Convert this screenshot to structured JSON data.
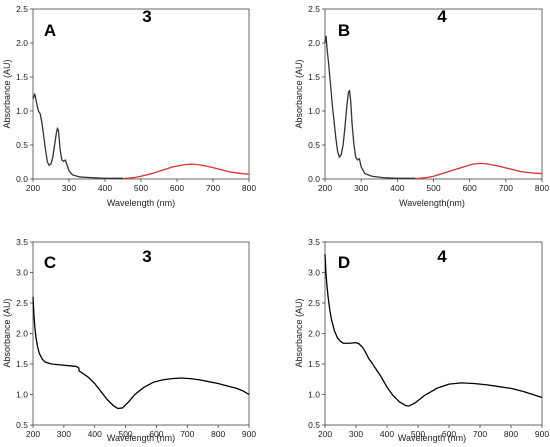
{
  "chart_data": [
    {
      "type": "line",
      "panel_label": "A",
      "compound_label": "3",
      "xlabel": "Wavelength (nm)",
      "ylabel": "Absorbance (AU)",
      "xlim": [
        200,
        800
      ],
      "ylim": [
        0,
        2.5
      ],
      "xticks": [
        200,
        300,
        400,
        500,
        600,
        700,
        800
      ],
      "yticks": [
        0.0,
        0.5,
        1.0,
        1.5,
        2.0,
        2.5
      ],
      "tick_labels_x": [
        "200",
        "300",
        "400",
        "500",
        "600",
        "700",
        "800"
      ],
      "tick_labels_y": [
        "0.0",
        "0.5",
        "1.0",
        "1.5",
        "2.0",
        "2.5"
      ],
      "series": [
        {
          "color": "#333333",
          "points": [
            [
              200,
              1.18
            ],
            [
              205,
              1.25
            ],
            [
              210,
              1.12
            ],
            [
              215,
              1.0
            ],
            [
              220,
              0.96
            ],
            [
              225,
              0.82
            ],
            [
              230,
              0.62
            ],
            [
              235,
              0.42
            ],
            [
              240,
              0.25
            ],
            [
              245,
              0.2
            ],
            [
              250,
              0.22
            ],
            [
              255,
              0.32
            ],
            [
              260,
              0.5
            ],
            [
              265,
              0.68
            ],
            [
              268,
              0.75
            ],
            [
              271,
              0.7
            ],
            [
              275,
              0.45
            ],
            [
              280,
              0.28
            ],
            [
              285,
              0.26
            ],
            [
              290,
              0.28
            ],
            [
              295,
              0.2
            ],
            [
              300,
              0.12
            ],
            [
              310,
              0.06
            ],
            [
              330,
              0.03
            ],
            [
              360,
              0.02
            ],
            [
              400,
              0.01
            ],
            [
              450,
              0.01
            ]
          ]
        },
        {
          "color": "#e03030",
          "points": [
            [
              450,
              0.005
            ],
            [
              480,
              0.02
            ],
            [
              500,
              0.04
            ],
            [
              530,
              0.08
            ],
            [
              560,
              0.13
            ],
            [
              590,
              0.18
            ],
            [
              620,
              0.21
            ],
            [
              640,
              0.22
            ],
            [
              660,
              0.21
            ],
            [
              690,
              0.18
            ],
            [
              720,
              0.14
            ],
            [
              750,
              0.1
            ],
            [
              780,
              0.08
            ],
            [
              800,
              0.07
            ]
          ]
        }
      ]
    },
    {
      "type": "line",
      "panel_label": "B",
      "compound_label": "4",
      "xlabel": "Wavelength(nm)",
      "ylabel": "Absorbance (AU)",
      "xlim": [
        200,
        800
      ],
      "ylim": [
        0,
        2.5
      ],
      "xticks": [
        200,
        300,
        400,
        500,
        600,
        700,
        800
      ],
      "yticks": [
        0.0,
        0.5,
        1.0,
        1.5,
        2.0,
        2.5
      ],
      "tick_labels_x": [
        "200",
        "300",
        "400",
        "500",
        "600",
        "700",
        "800"
      ],
      "tick_labels_y": [
        "0.0",
        "0.5",
        "1.0",
        "1.5",
        "2.0",
        "2.5"
      ],
      "series": [
        {
          "color": "#333333",
          "points": [
            [
              200,
              2.0
            ],
            [
              203,
              2.1
            ],
            [
              206,
              1.9
            ],
            [
              210,
              1.7
            ],
            [
              215,
              1.4
            ],
            [
              220,
              1.1
            ],
            [
              225,
              0.85
            ],
            [
              230,
              0.6
            ],
            [
              235,
              0.4
            ],
            [
              240,
              0.32
            ],
            [
              245,
              0.36
            ],
            [
              250,
              0.5
            ],
            [
              255,
              0.75
            ],
            [
              260,
              1.05
            ],
            [
              265,
              1.28
            ],
            [
              268,
              1.3
            ],
            [
              271,
              1.15
            ],
            [
              275,
              0.8
            ],
            [
              280,
              0.5
            ],
            [
              285,
              0.32
            ],
            [
              290,
              0.28
            ],
            [
              295,
              0.3
            ],
            [
              300,
              0.18
            ],
            [
              310,
              0.08
            ],
            [
              330,
              0.04
            ],
            [
              360,
              0.02
            ],
            [
              400,
              0.01
            ],
            [
              450,
              0.01
            ]
          ]
        },
        {
          "color": "#e03030",
          "points": [
            [
              450,
              0.005
            ],
            [
              480,
              0.02
            ],
            [
              500,
              0.04
            ],
            [
              530,
              0.09
            ],
            [
              560,
              0.14
            ],
            [
              590,
              0.19
            ],
            [
              610,
              0.22
            ],
            [
              630,
              0.23
            ],
            [
              650,
              0.22
            ],
            [
              680,
              0.19
            ],
            [
              710,
              0.15
            ],
            [
              740,
              0.11
            ],
            [
              770,
              0.09
            ],
            [
              800,
              0.08
            ]
          ]
        }
      ]
    },
    {
      "type": "line",
      "panel_label": "C",
      "compound_label": "3",
      "xlabel": "Wavelength (nm)",
      "ylabel": "Absorbance (AU)",
      "xlim": [
        200,
        900
      ],
      "ylim": [
        0.5,
        3.5
      ],
      "xticks": [
        200,
        300,
        400,
        500,
        600,
        700,
        800,
        900
      ],
      "yticks": [
        0.5,
        1.0,
        1.5,
        2.0,
        2.5,
        3.0,
        3.5
      ],
      "tick_labels_x": [
        "200",
        "300",
        "400",
        "500",
        "600",
        "700",
        "800",
        "900"
      ],
      "tick_labels_y": [
        "0.5",
        "1.0",
        "1.5",
        "2.0",
        "2.5",
        "3.0",
        "3.5"
      ],
      "series": [
        {
          "color": "#000000",
          "points": [
            [
              200,
              2.6
            ],
            [
              203,
              2.3
            ],
            [
              206,
              2.1
            ],
            [
              210,
              1.92
            ],
            [
              215,
              1.78
            ],
            [
              220,
              1.68
            ],
            [
              230,
              1.58
            ],
            [
              240,
              1.53
            ],
            [
              260,
              1.5
            ],
            [
              280,
              1.49
            ],
            [
              300,
              1.48
            ],
            [
              320,
              1.47
            ],
            [
              340,
              1.46
            ],
            [
              348,
              1.44
            ],
            [
              350,
              1.38
            ],
            [
              355,
              1.37
            ],
            [
              360,
              1.35
            ],
            [
              380,
              1.28
            ],
            [
              400,
              1.18
            ],
            [
              420,
              1.05
            ],
            [
              440,
              0.92
            ],
            [
              460,
              0.82
            ],
            [
              475,
              0.77
            ],
            [
              490,
              0.78
            ],
            [
              510,
              0.88
            ],
            [
              530,
              1.0
            ],
            [
              560,
              1.12
            ],
            [
              590,
              1.2
            ],
            [
              620,
              1.24
            ],
            [
              650,
              1.26
            ],
            [
              680,
              1.27
            ],
            [
              710,
              1.26
            ],
            [
              740,
              1.24
            ],
            [
              770,
              1.21
            ],
            [
              800,
              1.18
            ],
            [
              830,
              1.14
            ],
            [
              860,
              1.1
            ],
            [
              880,
              1.06
            ],
            [
              900,
              1.0
            ]
          ]
        }
      ]
    },
    {
      "type": "line",
      "panel_label": "D",
      "compound_label": "4",
      "xlabel": "Wavelength (nm)",
      "ylabel": "Absorbance (AU)",
      "xlim": [
        200,
        900
      ],
      "ylim": [
        0.5,
        3.5
      ],
      "xticks": [
        200,
        300,
        400,
        500,
        600,
        700,
        800,
        900
      ],
      "yticks": [
        0.5,
        1.0,
        1.5,
        2.0,
        2.5,
        3.0,
        3.5
      ],
      "tick_labels_x": [
        "200",
        "300",
        "400",
        "500",
        "600",
        "700",
        "800",
        "900"
      ],
      "tick_labels_y": [
        "0.5",
        "1.0",
        "1.5",
        "2.0",
        "2.5",
        "3.0",
        "3.5"
      ],
      "series": [
        {
          "color": "#000000",
          "points": [
            [
              200,
              3.3
            ],
            [
              203,
              3.0
            ],
            [
              206,
              2.8
            ],
            [
              210,
              2.6
            ],
            [
              215,
              2.4
            ],
            [
              220,
              2.25
            ],
            [
              230,
              2.05
            ],
            [
              240,
              1.93
            ],
            [
              250,
              1.87
            ],
            [
              260,
              1.84
            ],
            [
              280,
              1.84
            ],
            [
              300,
              1.85
            ],
            [
              310,
              1.83
            ],
            [
              320,
              1.78
            ],
            [
              330,
              1.7
            ],
            [
              340,
              1.6
            ],
            [
              345,
              1.56
            ],
            [
              350,
              1.53
            ],
            [
              360,
              1.45
            ],
            [
              380,
              1.3
            ],
            [
              400,
              1.12
            ],
            [
              420,
              0.98
            ],
            [
              440,
              0.88
            ],
            [
              460,
              0.82
            ],
            [
              470,
              0.81
            ],
            [
              490,
              0.86
            ],
            [
              520,
              0.98
            ],
            [
              560,
              1.1
            ],
            [
              600,
              1.17
            ],
            [
              640,
              1.19
            ],
            [
              680,
              1.18
            ],
            [
              720,
              1.16
            ],
            [
              760,
              1.13
            ],
            [
              800,
              1.1
            ],
            [
              840,
              1.05
            ],
            [
              870,
              1.0
            ],
            [
              900,
              0.95
            ]
          ]
        }
      ]
    }
  ]
}
